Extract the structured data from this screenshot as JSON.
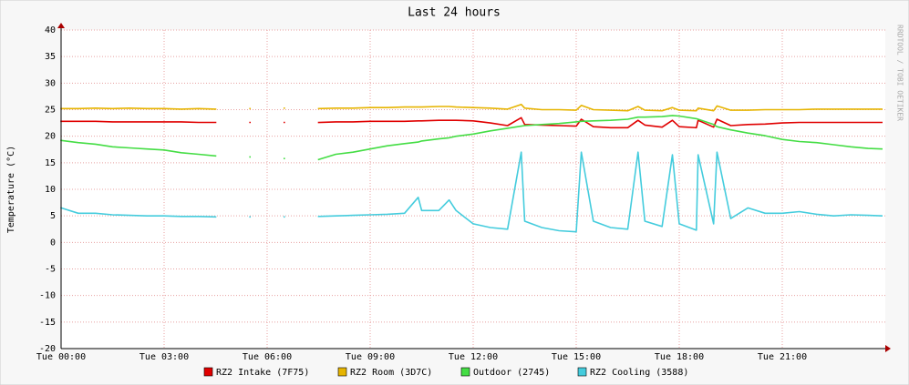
{
  "chart_data": {
    "type": "line",
    "title": "Last 24 hours",
    "y_label": "Temperature (°C)",
    "watermark": "RRDTOOL / TOBI OETIKER",
    "xlim": [
      0,
      24
    ],
    "ylim": [
      -20,
      40
    ],
    "xticks": [
      {
        "value": 0,
        "label": "Tue 00:00"
      },
      {
        "value": 3,
        "label": "Tue 03:00"
      },
      {
        "value": 6,
        "label": "Tue 06:00"
      },
      {
        "value": 9,
        "label": "Tue 09:00"
      },
      {
        "value": 12,
        "label": "Tue 12:00"
      },
      {
        "value": 15,
        "label": "Tue 15:00"
      },
      {
        "value": 18,
        "label": "Tue 18:00"
      },
      {
        "value": 21,
        "label": "Tue 21:00"
      }
    ],
    "yticks": [
      -20,
      -15,
      -10,
      -5,
      0,
      5,
      10,
      15,
      20,
      25,
      30,
      35,
      40
    ],
    "grid": true,
    "x": [
      0,
      0.5,
      1,
      1.5,
      2,
      2.5,
      3,
      3.5,
      4,
      4.5,
      5,
      5.5,
      6,
      6.5,
      7,
      7.5,
      8,
      8.5,
      9,
      9.5,
      10,
      10.4,
      10.5,
      11,
      11.3,
      11.5,
      12,
      12.5,
      13,
      13.4,
      13.5,
      14,
      14.5,
      15,
      15.15,
      15.5,
      16,
      16.5,
      16.8,
      17,
      17.5,
      17.8,
      18,
      18.5,
      18.55,
      19,
      19.1,
      19.5,
      20,
      20.5,
      21,
      21.5,
      22,
      22.5,
      23,
      23.5,
      23.9
    ],
    "series": [
      {
        "name": "RZ2 Intake (7F75)",
        "color": "#e00000",
        "values": [
          22.8,
          22.8,
          22.8,
          22.7,
          22.7,
          22.7,
          22.7,
          22.7,
          22.6,
          22.6,
          null,
          22.6,
          null,
          22.6,
          null,
          22.6,
          22.7,
          22.7,
          22.8,
          22.8,
          22.8,
          22.9,
          22.9,
          23.0,
          23.0,
          23.0,
          22.9,
          22.5,
          22.0,
          23.5,
          22.2,
          22.1,
          22.0,
          21.9,
          23.2,
          21.8,
          21.6,
          21.6,
          23.0,
          22.1,
          21.7,
          23.0,
          21.8,
          21.6,
          23.0,
          21.7,
          23.2,
          22.0,
          22.2,
          22.3,
          22.5,
          22.6,
          22.6,
          22.6,
          22.6,
          22.6,
          22.6
        ]
      },
      {
        "name": "RZ2 Room (3D7C)",
        "color": "#e6b400",
        "values": [
          25.2,
          25.2,
          25.3,
          25.2,
          25.3,
          25.2,
          25.2,
          25.1,
          25.2,
          25.1,
          null,
          25.2,
          null,
          25.3,
          null,
          25.2,
          25.3,
          25.3,
          25.4,
          25.4,
          25.5,
          25.5,
          25.5,
          25.6,
          25.6,
          25.5,
          25.4,
          25.3,
          25.1,
          26.0,
          25.3,
          25.0,
          25.0,
          24.9,
          25.8,
          25.0,
          24.9,
          24.8,
          25.6,
          24.9,
          24.8,
          25.4,
          24.9,
          24.8,
          25.3,
          24.8,
          25.7,
          24.9,
          24.9,
          25.0,
          25.0,
          25.0,
          25.1,
          25.1,
          25.1,
          25.1,
          25.1
        ]
      },
      {
        "name": "Outdoor (2745)",
        "color": "#44dd44",
        "values": [
          19.2,
          18.8,
          18.5,
          18.0,
          17.8,
          17.6,
          17.4,
          16.9,
          16.6,
          16.3,
          null,
          16.1,
          null,
          15.8,
          null,
          15.6,
          16.6,
          17.0,
          17.6,
          18.2,
          18.6,
          18.9,
          19.1,
          19.5,
          19.7,
          20.0,
          20.4,
          21.0,
          21.5,
          21.9,
          22.0,
          22.2,
          22.4,
          22.7,
          22.8,
          22.9,
          23.0,
          23.2,
          23.6,
          23.6,
          23.7,
          23.9,
          23.8,
          23.3,
          23.2,
          22.2,
          21.8,
          21.2,
          20.6,
          20.1,
          19.4,
          19.0,
          18.8,
          18.4,
          18.0,
          17.7,
          17.6
        ]
      },
      {
        "name": "RZ2 Cooling (3588)",
        "color": "#44ccdd",
        "values": [
          6.5,
          5.5,
          5.5,
          5.2,
          5.1,
          5.0,
          5.0,
          4.9,
          4.9,
          4.8,
          null,
          4.8,
          null,
          4.8,
          null,
          4.9,
          5.0,
          5.1,
          5.2,
          5.3,
          5.5,
          8.5,
          6.0,
          6.0,
          8.0,
          6.0,
          3.5,
          2.8,
          2.5,
          17.0,
          4.0,
          2.8,
          2.2,
          2.0,
          17.0,
          4.0,
          2.8,
          2.5,
          17.0,
          4.0,
          3.0,
          16.5,
          3.5,
          2.3,
          16.5,
          3.5,
          17.0,
          4.5,
          6.5,
          5.5,
          5.5,
          5.8,
          5.3,
          5.0,
          5.2,
          5.1,
          5.0
        ]
      }
    ]
  }
}
